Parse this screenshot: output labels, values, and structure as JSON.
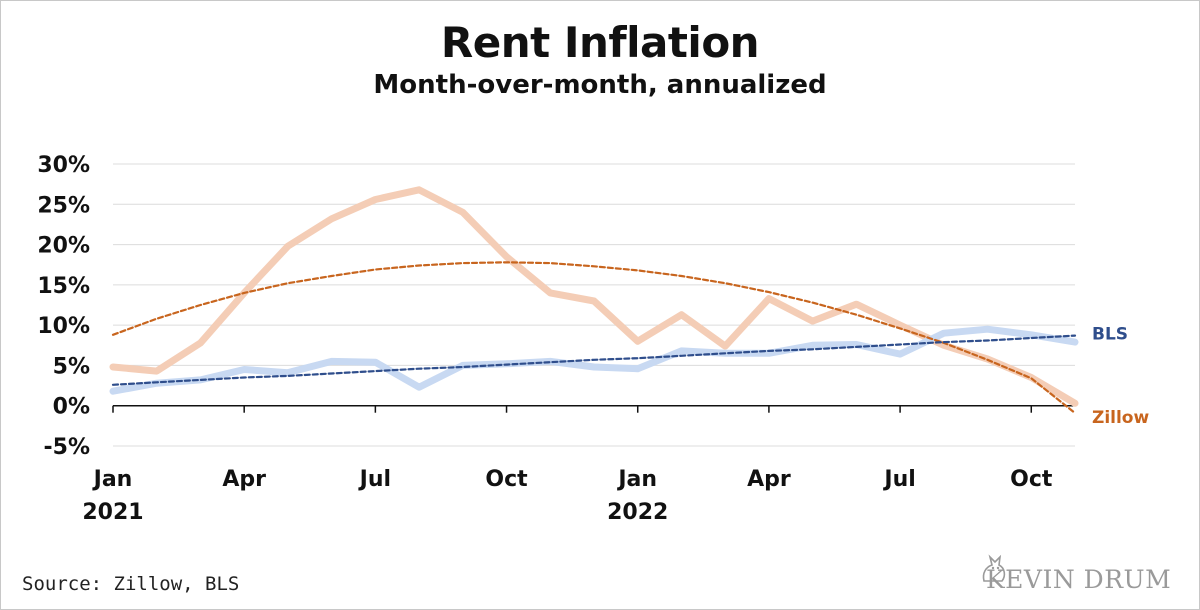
{
  "title": "Rent Inflation",
  "subtitle": "Month-over-month, annualized",
  "source": "Source: Zillow, BLS",
  "brand": "KEVIN DRUM",
  "colors": {
    "zillow": "#f4cdb6",
    "zillow_trend": "#c8651e",
    "bls": "#c8d9f2",
    "bls_trend": "#2f4e8c",
    "grid": "#dcdcdc"
  },
  "chart_data": {
    "type": "line",
    "title": "Rent Inflation",
    "subtitle": "Month-over-month, annualized",
    "ylim": [
      -5,
      30
    ],
    "yticks": [
      -5,
      0,
      5,
      10,
      15,
      20,
      25,
      30
    ],
    "ytick_labels": [
      "-5%",
      "0%",
      "5%",
      "10%",
      "15%",
      "20%",
      "25%",
      "30%"
    ],
    "x": [
      "2021-01",
      "2021-02",
      "2021-03",
      "2021-04",
      "2021-05",
      "2021-06",
      "2021-07",
      "2021-08",
      "2021-09",
      "2021-10",
      "2021-11",
      "2021-12",
      "2022-01",
      "2022-02",
      "2022-03",
      "2022-04",
      "2022-05",
      "2022-06",
      "2022-07",
      "2022-08",
      "2022-09",
      "2022-10",
      "2022-11"
    ],
    "xtick_labels": [
      {
        "month": "2021-01",
        "label": "Jan",
        "year": "2021"
      },
      {
        "month": "2021-04",
        "label": "Apr",
        "year": ""
      },
      {
        "month": "2021-07",
        "label": "Jul",
        "year": ""
      },
      {
        "month": "2021-10",
        "label": "Oct",
        "year": ""
      },
      {
        "month": "2022-01",
        "label": "Jan",
        "year": "2022"
      },
      {
        "month": "2022-04",
        "label": "Apr",
        "year": ""
      },
      {
        "month": "2022-07",
        "label": "Jul",
        "year": ""
      },
      {
        "month": "2022-10",
        "label": "Oct",
        "year": ""
      }
    ],
    "grid": true,
    "series": [
      {
        "name": "Zillow",
        "values": [
          4.8,
          4.3,
          7.8,
          14.0,
          19.8,
          23.2,
          25.6,
          26.8,
          24.0,
          18.5,
          14.0,
          13.0,
          8.0,
          11.3,
          7.4,
          13.3,
          10.5,
          12.6,
          10.0,
          7.5,
          5.8,
          3.5,
          0.3
        ]
      },
      {
        "name": "BLS",
        "values": [
          1.8,
          2.8,
          3.2,
          4.5,
          4.1,
          5.5,
          5.4,
          2.3,
          5.0,
          5.2,
          5.5,
          4.8,
          4.6,
          6.8,
          6.5,
          6.5,
          7.5,
          7.6,
          6.4,
          9.0,
          9.5,
          8.8,
          7.9
        ]
      },
      {
        "name": "Zillow trend",
        "values": [
          8.8,
          10.8,
          12.5,
          14.0,
          15.2,
          16.1,
          16.9,
          17.4,
          17.7,
          17.8,
          17.7,
          17.3,
          16.8,
          16.1,
          15.2,
          14.1,
          12.8,
          11.3,
          9.6,
          7.8,
          5.7,
          3.4,
          -0.9
        ],
        "style": "dashed"
      },
      {
        "name": "BLS trend",
        "values": [
          2.6,
          2.9,
          3.2,
          3.5,
          3.7,
          4.0,
          4.3,
          4.6,
          4.8,
          5.1,
          5.4,
          5.7,
          5.9,
          6.2,
          6.5,
          6.8,
          7.0,
          7.3,
          7.6,
          7.9,
          8.1,
          8.4,
          8.7
        ],
        "style": "dashed"
      }
    ],
    "series_labels": [
      "BLS",
      "Zillow"
    ]
  }
}
